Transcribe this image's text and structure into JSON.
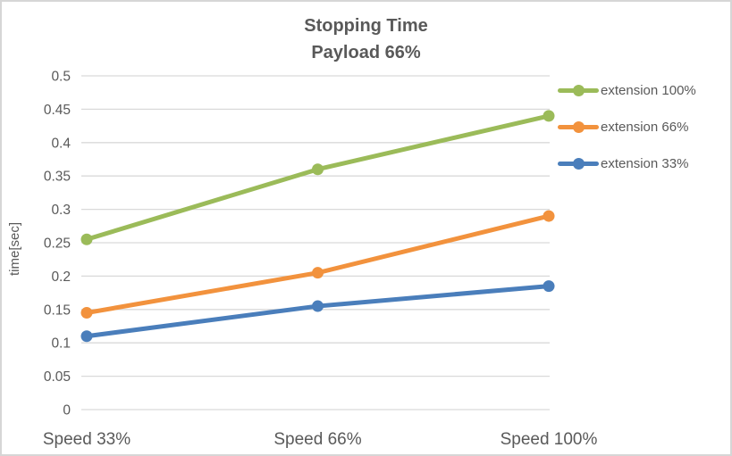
{
  "window": {
    "background": "#ffffff",
    "border_color": "#d6d6d6",
    "text_color": "#595959"
  },
  "chart_data": {
    "type": "line",
    "title": "Stopping Time",
    "subtitle": "Payload 66%",
    "ylabel": "time[sec]",
    "xlabel": "",
    "categories": [
      "Speed 33%",
      "Speed 66%",
      "Speed 100%"
    ],
    "series": [
      {
        "name": "extension 100%",
        "color": "#9BBB59",
        "values": [
          0.255,
          0.36,
          0.44
        ]
      },
      {
        "name": "extension 66%",
        "color": "#F2923D",
        "values": [
          0.145,
          0.205,
          0.29
        ]
      },
      {
        "name": "extension 33%",
        "color": "#4A7EBB",
        "values": [
          0.11,
          0.155,
          0.185
        ]
      }
    ],
    "ylim": [
      0,
      0.5
    ],
    "ytick_step": 0.05,
    "ytick_labels": [
      "0",
      "0.05",
      "0.1",
      "0.15",
      "0.2",
      "0.25",
      "0.3",
      "0.35",
      "0.4",
      "0.45",
      "0.5"
    ],
    "grid": true,
    "grid_color": "#D9D9D9",
    "legend_position": "right",
    "marker_style": "circle"
  }
}
